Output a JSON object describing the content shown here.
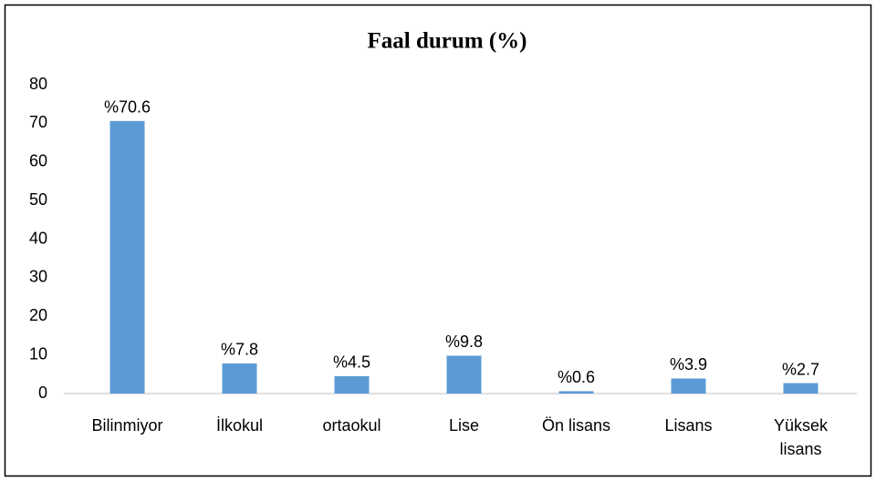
{
  "chart_data": {
    "type": "bar",
    "title": "Faal durum (%)",
    "categories": [
      "Bilinmiyor",
      "İlkokul",
      "ortaokul",
      "Lise",
      "Ön lisans",
      "Lisans",
      "Yüksek lisans"
    ],
    "values": [
      70.6,
      7.8,
      4.5,
      9.8,
      0.6,
      3.9,
      2.7
    ],
    "value_labels": [
      "%70.6",
      "%7.8",
      "%4.5",
      "%9.8",
      "%0.6",
      "%3.9",
      "%2.7"
    ],
    "color": "#5b9bd5",
    "ylim": [
      0,
      80
    ],
    "yticks": [
      0,
      10,
      20,
      30,
      40,
      50,
      60,
      70,
      80
    ],
    "grid": false
  }
}
